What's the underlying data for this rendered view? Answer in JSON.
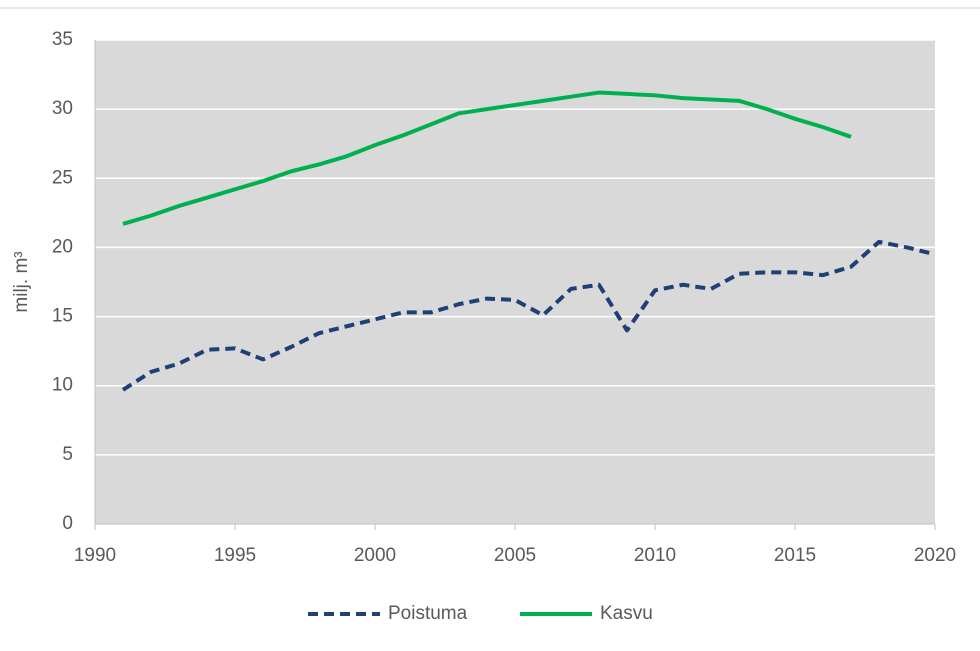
{
  "chart_data": {
    "type": "line",
    "y_label": "milj. m³",
    "x": [
      1991,
      1992,
      1993,
      1994,
      1995,
      1996,
      1997,
      1998,
      1999,
      2000,
      2001,
      2002,
      2003,
      2004,
      2005,
      2006,
      2007,
      2008,
      2009,
      2010,
      2011,
      2012,
      2013,
      2014,
      2015,
      2016,
      2017,
      2018,
      2019,
      2020
    ],
    "series": [
      {
        "name": "Poistuma",
        "color": "#1f3f77",
        "dashed": true,
        "values": [
          9.7,
          11.0,
          11.6,
          12.6,
          12.7,
          11.9,
          12.8,
          13.8,
          14.3,
          14.8,
          15.3,
          15.3,
          15.9,
          16.3,
          16.2,
          15.1,
          17.0,
          17.3,
          14.0,
          16.9,
          17.3,
          17.0,
          18.1,
          18.2,
          18.2,
          18.0,
          18.6,
          20.4,
          20.0,
          19.5
        ]
      },
      {
        "name": "Kasvu",
        "color": "#00b050",
        "dashed": false,
        "values": [
          21.7,
          22.3,
          23.0,
          23.6,
          24.2,
          24.8,
          25.5,
          26.0,
          26.6,
          27.4,
          28.1,
          28.9,
          29.7,
          30.0,
          30.3,
          30.6,
          30.9,
          31.2,
          31.1,
          31.0,
          30.8,
          30.7,
          30.6,
          30.0,
          29.3,
          28.7,
          28.0,
          null,
          null,
          null
        ]
      }
    ],
    "xlim": [
      1990,
      2020
    ],
    "xticks": [
      1990,
      1995,
      2000,
      2005,
      2010,
      2015,
      2020
    ],
    "ylim": [
      0,
      35
    ],
    "yticks": [
      0,
      5,
      10,
      15,
      20,
      25,
      30,
      35
    ],
    "grid": true,
    "legend": "bottom",
    "plot_background": "#d9d9d9"
  }
}
